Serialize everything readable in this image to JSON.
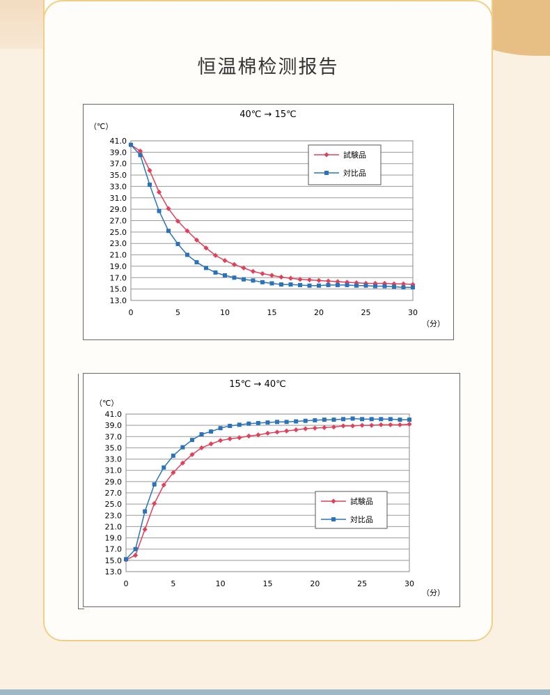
{
  "page": {
    "title": "恒温棉检测报告"
  },
  "chart_data": [
    {
      "type": "line",
      "title": "40℃ → 15℃",
      "ylabel": "（℃）",
      "xlabel": "（分）",
      "ylim": [
        13,
        41
      ],
      "xlim": [
        0,
        30
      ],
      "yticks": [
        "41.0",
        "39.0",
        "37.0",
        "35.0",
        "33.0",
        "31.0",
        "29.0",
        "27.0",
        "25.0",
        "23.0",
        "21.0",
        "19.0",
        "17.0",
        "15.0",
        "13.0"
      ],
      "xticks": [
        "0",
        "5",
        "10",
        "15",
        "20",
        "25",
        "30"
      ],
      "legend_position": "top-right",
      "grid": true,
      "x": [
        0,
        1,
        2,
        3,
        4,
        5,
        6,
        7,
        8,
        9,
        10,
        11,
        12,
        13,
        14,
        15,
        16,
        17,
        18,
        19,
        20,
        21,
        22,
        23,
        24,
        25,
        26,
        27,
        28,
        29,
        30
      ],
      "series": [
        {
          "name": "試験品",
          "color": "#e0405a",
          "marker": "diamond",
          "values": [
            40.3,
            39.2,
            35.8,
            32.0,
            29.1,
            26.9,
            25.2,
            23.6,
            22.2,
            20.9,
            20.0,
            19.3,
            18.7,
            18.1,
            17.7,
            17.4,
            17.1,
            16.9,
            16.7,
            16.6,
            16.5,
            16.4,
            16.3,
            16.2,
            16.1,
            16.0,
            16.0,
            16.0,
            15.9,
            15.9,
            15.8
          ]
        },
        {
          "name": "対比品",
          "color": "#2a73b8",
          "marker": "square",
          "values": [
            40.3,
            38.5,
            33.3,
            28.7,
            25.2,
            22.9,
            21.0,
            19.7,
            18.7,
            17.9,
            17.4,
            17.0,
            16.7,
            16.5,
            16.2,
            16.0,
            15.8,
            15.8,
            15.7,
            15.6,
            15.6,
            15.7,
            15.7,
            15.7,
            15.6,
            15.6,
            15.5,
            15.5,
            15.4,
            15.3,
            15.3
          ]
        }
      ]
    },
    {
      "type": "line",
      "title": "15℃ → 40℃",
      "ylabel": "（℃）",
      "xlabel": "（分）",
      "ylim": [
        13,
        41
      ],
      "xlim": [
        0,
        30
      ],
      "yticks": [
        "41.0",
        "39.0",
        "37.0",
        "35.0",
        "33.0",
        "31.0",
        "29.0",
        "27.0",
        "25.0",
        "23.0",
        "21.0",
        "19.0",
        "17.0",
        "15.0",
        "13.0"
      ],
      "xticks": [
        "0",
        "5",
        "10",
        "15",
        "20",
        "25",
        "30"
      ],
      "legend_position": "middle-right",
      "grid": true,
      "x": [
        0,
        1,
        2,
        3,
        4,
        5,
        6,
        7,
        8,
        9,
        10,
        11,
        12,
        13,
        14,
        15,
        16,
        17,
        18,
        19,
        20,
        21,
        22,
        23,
        24,
        25,
        26,
        27,
        28,
        29,
        30
      ],
      "series": [
        {
          "name": "試験品",
          "color": "#e0405a",
          "marker": "diamond",
          "values": [
            15.1,
            15.9,
            20.5,
            25.1,
            28.4,
            30.6,
            32.3,
            33.8,
            35.0,
            35.7,
            36.3,
            36.6,
            36.8,
            37.1,
            37.3,
            37.6,
            37.8,
            38.0,
            38.2,
            38.4,
            38.5,
            38.6,
            38.7,
            38.9,
            38.9,
            39.0,
            39.0,
            39.1,
            39.1,
            39.1,
            39.2
          ]
        },
        {
          "name": "対比品",
          "color": "#2a73b8",
          "marker": "square",
          "values": [
            15.2,
            17.0,
            23.7,
            28.5,
            31.5,
            33.6,
            35.1,
            36.4,
            37.4,
            37.9,
            38.5,
            38.9,
            39.1,
            39.3,
            39.4,
            39.5,
            39.6,
            39.6,
            39.7,
            39.8,
            39.9,
            40.0,
            40.0,
            40.1,
            40.2,
            40.1,
            40.1,
            40.1,
            40.1,
            40.0,
            40.0
          ]
        }
      ]
    }
  ]
}
